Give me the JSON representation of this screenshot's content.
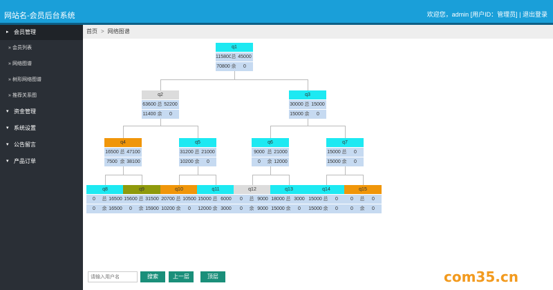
{
  "header": {
    "site_title": "网站名-会员后台系统",
    "welcome": "欢迎您，admin [用户ID：管理员] | 退出登录"
  },
  "sidebar": {
    "groups": [
      "会员管理",
      "资金管理",
      "系统设置",
      "公告留言",
      "产品订单"
    ],
    "sub_items": [
      "会员列表",
      "网络图谱",
      "树形网络图谱",
      "推荐关系图"
    ]
  },
  "breadcrumb": {
    "home": "首页",
    "separator": ">",
    "current": "网络图谱"
  },
  "tree": {
    "q1": {
      "name": "q1",
      "r1": [
        "115800",
        "总",
        "45000"
      ],
      "r2": [
        "70800",
        "余",
        "0"
      ]
    },
    "q2": {
      "name": "q2",
      "r1": [
        "63600",
        "总",
        "52200"
      ],
      "r2": [
        "11400",
        "余",
        "0"
      ]
    },
    "q3": {
      "name": "q3",
      "r1": [
        "30000",
        "总",
        "15000"
      ],
      "r2": [
        "15000",
        "余",
        "0"
      ]
    },
    "q4": {
      "name": "q4",
      "r1": [
        "16500",
        "总",
        "47100"
      ],
      "r2": [
        "7500",
        "余",
        "38100"
      ]
    },
    "q5": {
      "name": "q5",
      "r1": [
        "31200",
        "总",
        "21000"
      ],
      "r2": [
        "10200",
        "余",
        "0"
      ]
    },
    "q6": {
      "name": "q6",
      "r1": [
        "9000",
        "总",
        "21000"
      ],
      "r2": [
        "0",
        "余",
        "12000"
      ]
    },
    "q7": {
      "name": "q7",
      "r1": [
        "15000",
        "总",
        "0"
      ],
      "r2": [
        "15000",
        "余",
        "0"
      ]
    },
    "q8": {
      "name": "q8",
      "r1": [
        "0",
        "总",
        "16500"
      ],
      "r2": [
        "0",
        "余",
        "16500"
      ]
    },
    "q9": {
      "name": "q9",
      "r1": [
        "15600",
        "总",
        "31500"
      ],
      "r2": [
        "0",
        "余",
        "15900"
      ]
    },
    "q10": {
      "name": "q10",
      "r1": [
        "20700",
        "总",
        "10500"
      ],
      "r2": [
        "10200",
        "余",
        "0"
      ]
    },
    "q11": {
      "name": "q11",
      "r1": [
        "15000",
        "总",
        "6000"
      ],
      "r2": [
        "12000",
        "余",
        "3000"
      ]
    },
    "q12": {
      "name": "q12",
      "r1": [
        "0",
        "总",
        "9000"
      ],
      "r2": [
        "0",
        "余",
        "9000"
      ]
    },
    "q13": {
      "name": "q13",
      "r1": [
        "18000",
        "总",
        "3000"
      ],
      "r2": [
        "15000",
        "余",
        "0"
      ]
    },
    "q14": {
      "name": "q14",
      "r1": [
        "15000",
        "总",
        "0"
      ],
      "r2": [
        "15000",
        "余",
        "0"
      ]
    },
    "q15": {
      "name": "q15",
      "r1": [
        "0",
        "总",
        "0"
      ],
      "r2": [
        "0",
        "余",
        "0"
      ]
    }
  },
  "controls": {
    "search_placeholder": "请输入用户名",
    "search_btn": "搜索",
    "up_btn": "上一层",
    "top_btn": "顶层"
  },
  "watermark": {
    "text": "com35.cn"
  },
  "colors": {
    "header": "#1a9fd9",
    "sidebar": "#2a2f36",
    "cyan": "#1de9f2",
    "gray": "#dcdcdc",
    "orange": "#f0960a",
    "olive": "#8f9a0c",
    "cell": "#c6daf1",
    "button": "#1a8f7a"
  }
}
